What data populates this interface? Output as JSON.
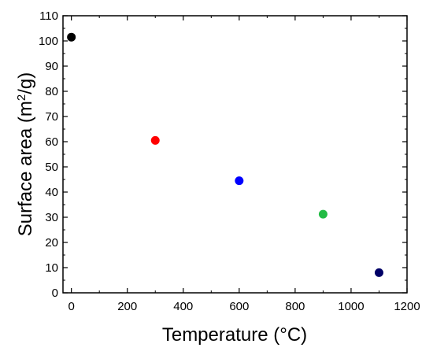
{
  "chart_data": {
    "type": "scatter",
    "xlabel": "Temperature (°C)",
    "ylabel_parts": {
      "before": "Surface area (m",
      "sup": "2",
      "after": "/g)"
    },
    "xlim": [
      -30,
      1200
    ],
    "ylim": [
      0,
      110
    ],
    "xticks": [
      0,
      200,
      400,
      600,
      800,
      1000,
      1200
    ],
    "yticks": [
      0,
      10,
      20,
      30,
      40,
      50,
      60,
      70,
      80,
      90,
      100,
      110
    ],
    "points": [
      {
        "x": 0,
        "y": 101.5,
        "color": "#000000"
      },
      {
        "x": 300,
        "y": 60.5,
        "color": "#ff0000"
      },
      {
        "x": 600,
        "y": 44.5,
        "color": "#0000ff"
      },
      {
        "x": 900,
        "y": 31.2,
        "color": "#22bb44"
      },
      {
        "x": 1100,
        "y": 8.0,
        "color": "#000066"
      }
    ]
  }
}
